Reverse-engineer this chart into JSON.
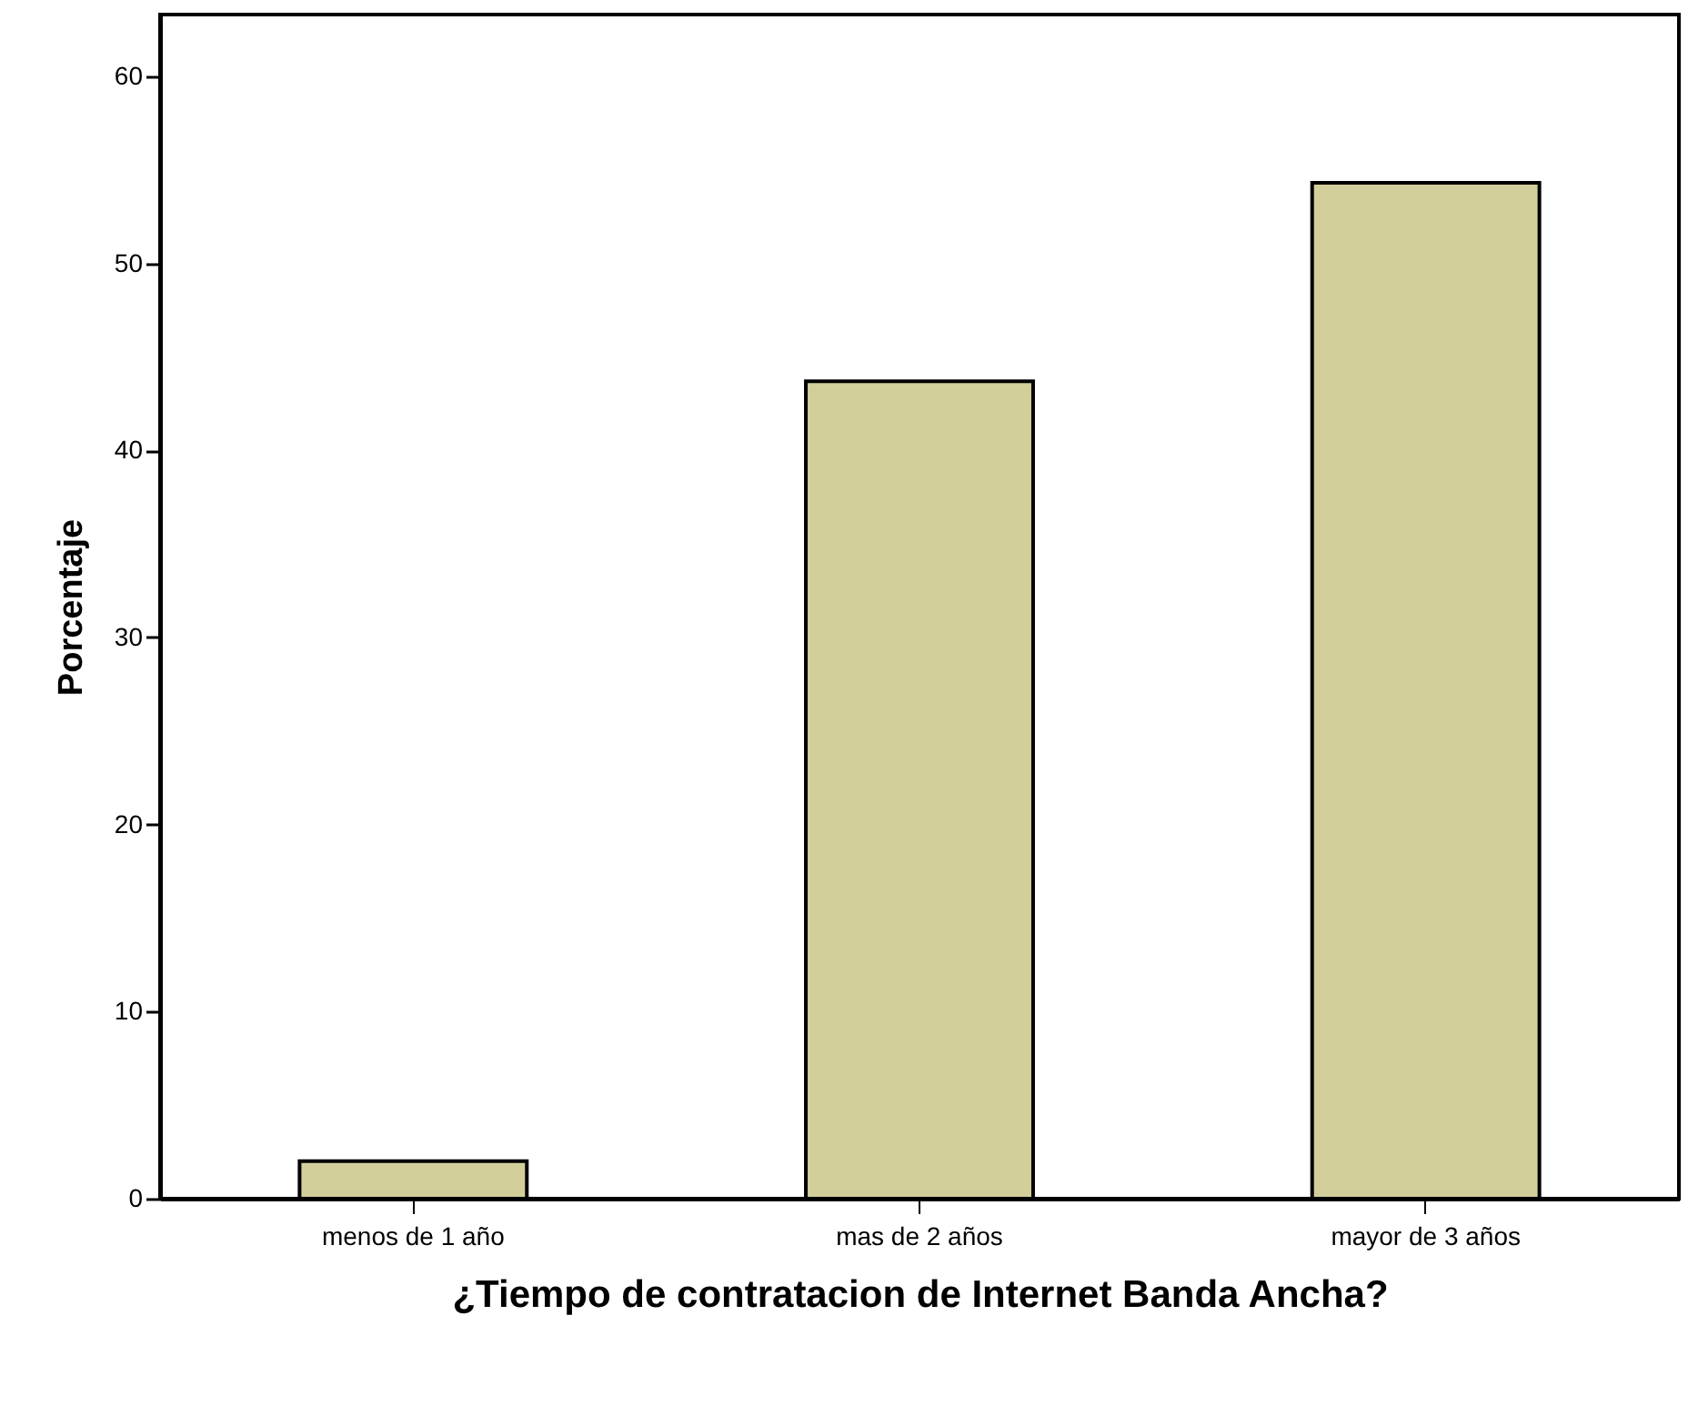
{
  "chart_data": {
    "type": "bar",
    "xlabel": "¿Tiempo de contratacion de Internet Banda Ancha?",
    "ylabel": "Porcentaje",
    "categories": [
      "menos de 1 año",
      "mas de 2 años",
      "mayor de 3 años"
    ],
    "values": [
      2.0,
      43.7,
      54.3
    ],
    "color": "#d3cf9b",
    "ylim": [
      0,
      63.3
    ],
    "yticks": [
      0,
      10,
      20,
      30,
      40,
      50,
      60
    ]
  }
}
